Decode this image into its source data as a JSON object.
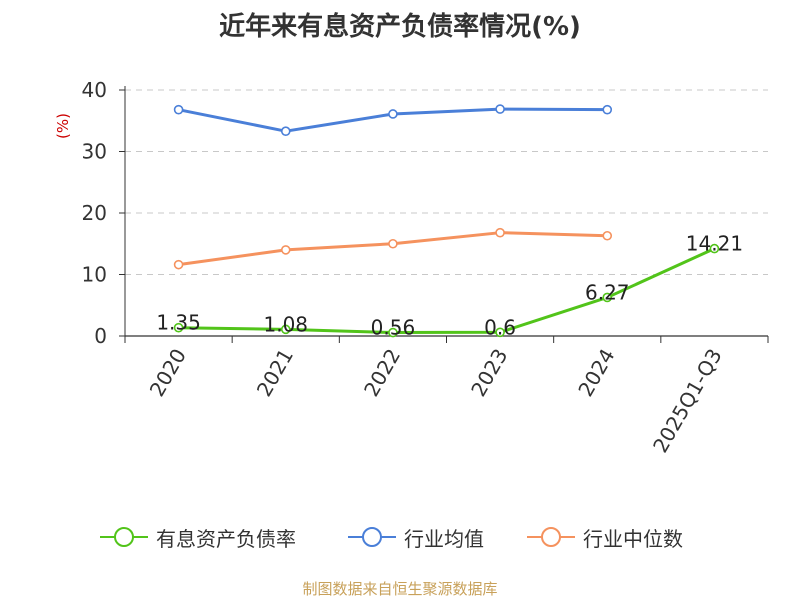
{
  "chart_data": {
    "type": "line",
    "title": "近年来有息资产负债率情况(%)",
    "ylabel": "(%)",
    "xlabel": "",
    "categories": [
      "2020",
      "2021",
      "2022",
      "2023",
      "2024",
      "2025Q1-Q3"
    ],
    "ylim": [
      0,
      40
    ],
    "yticks": [
      0,
      10,
      20,
      30,
      40
    ],
    "grid": true,
    "legend_position": "bottom",
    "series": [
      {
        "name": "有息资产负债率",
        "color": "#52c41a",
        "values": [
          1.35,
          1.08,
          0.56,
          0.6,
          6.27,
          14.21
        ],
        "labels": [
          "1.35",
          "1.08",
          "0.56",
          "0.6",
          "6.27",
          "14.21"
        ]
      },
      {
        "name": "行业均值",
        "color": "#4a7fd8",
        "values": [
          36.8,
          33.3,
          36.1,
          36.9,
          36.8,
          null
        ]
      },
      {
        "name": "行业中位数",
        "color": "#f5925e",
        "values": [
          11.6,
          14.0,
          15.0,
          16.8,
          16.3,
          null
        ]
      }
    ]
  },
  "source": "制图数据来自恒生聚源数据库"
}
